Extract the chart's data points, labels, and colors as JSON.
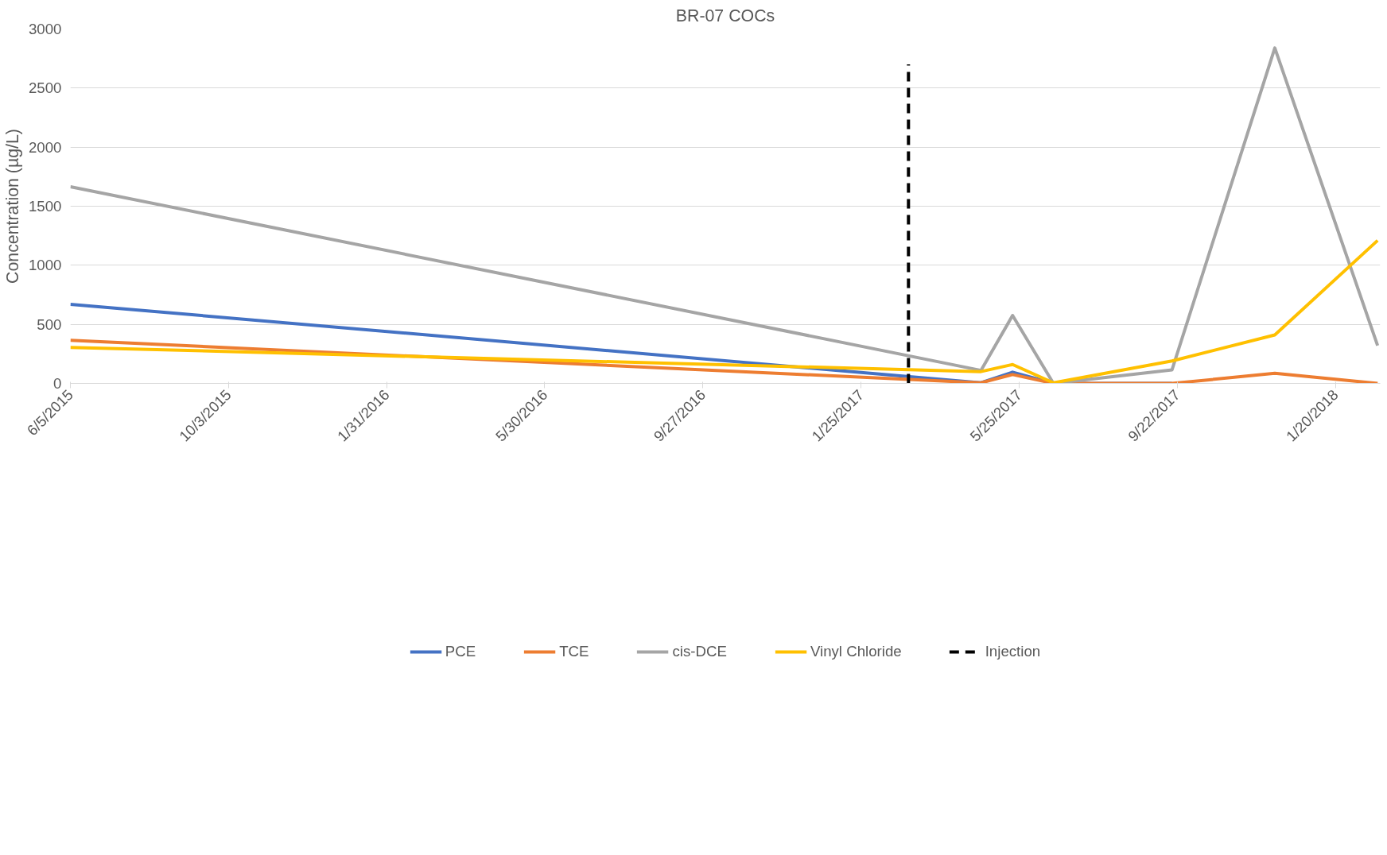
{
  "chart_data": {
    "type": "line",
    "title": "BR-07 COCs",
    "ylabel": "Concentration (µg/L)",
    "x": [
      "2015-06-05",
      "2017-04-26",
      "2017-05-20",
      "2017-06-20",
      "2017-09-18",
      "2017-12-05",
      "2018-02-21"
    ],
    "series": [
      {
        "name": "PCE",
        "color": "#4472c4",
        "values": [
          670,
          5,
          95,
          0,
          0,
          null,
          null
        ]
      },
      {
        "name": "TCE",
        "color": "#ed7d31",
        "values": [
          365,
          5,
          75,
          0,
          0,
          85,
          0
        ]
      },
      {
        "name": "cis-DCE",
        "color": "#a5a5a5",
        "values": [
          1665,
          110,
          575,
          0,
          115,
          2840,
          320
        ]
      },
      {
        "name": "Vinyl Chloride",
        "color": "#ffc000",
        "values": [
          305,
          100,
          160,
          5,
          190,
          410,
          1210
        ]
      }
    ],
    "ref_lines": [
      {
        "axis": "x",
        "value": "2017-03-02",
        "label": "Injection",
        "color": "#000000",
        "line_style": "dashed"
      }
    ],
    "xlim": [
      "2015-06-05",
      "2018-02-23"
    ],
    "xticks": [
      {
        "value": "2015-06-05",
        "label": "6/5/2015"
      },
      {
        "value": "2015-10-03",
        "label": "10/3/2015"
      },
      {
        "value": "2016-01-31",
        "label": "1/31/2016"
      },
      {
        "value": "2016-05-30",
        "label": "5/30/2016"
      },
      {
        "value": "2016-09-27",
        "label": "9/27/2016"
      },
      {
        "value": "2017-01-25",
        "label": "1/25/2017"
      },
      {
        "value": "2017-05-25",
        "label": "5/25/2017"
      },
      {
        "value": "2017-09-22",
        "label": "9/22/2017"
      },
      {
        "value": "2018-01-20",
        "label": "1/20/2018"
      }
    ],
    "ylim": [
      0,
      3000
    ],
    "yticks": [
      0,
      500,
      1000,
      1500,
      2000,
      2500,
      3000
    ],
    "grid": "y",
    "legend": "bottom",
    "marker": "none",
    "line_style": "solid"
  }
}
